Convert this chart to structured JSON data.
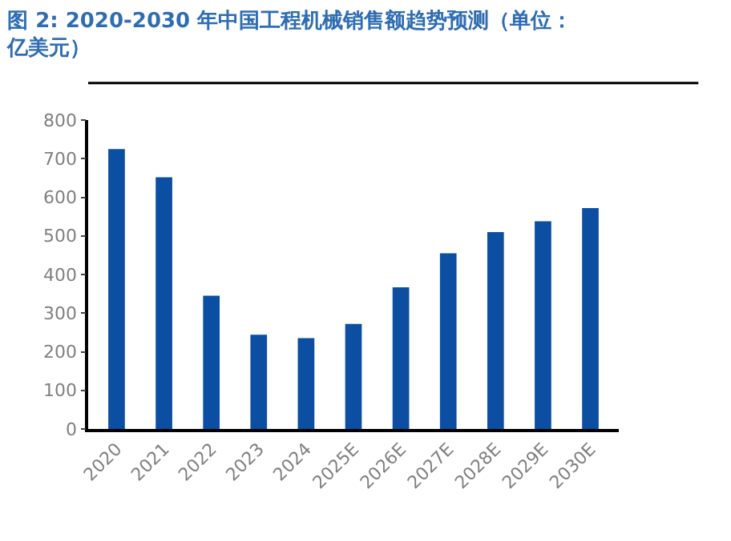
{
  "chart_data": {
    "type": "bar",
    "title": "图 2: 2020-2030 年中国工程机械销售额趋势预测（单位：亿美元）",
    "categories": [
      "2020",
      "2021",
      "2022",
      "2023",
      "2024",
      "2025E",
      "2026E",
      "2027E",
      "2028E",
      "2029E",
      "2030E"
    ],
    "values": [
      725,
      652,
      345,
      244,
      235,
      272,
      367,
      455,
      510,
      538,
      572
    ],
    "color": "#0b4ea2",
    "ylim": [
      0,
      800
    ],
    "yticks": [
      0,
      100,
      200,
      300,
      400,
      500,
      600,
      700,
      800
    ]
  }
}
